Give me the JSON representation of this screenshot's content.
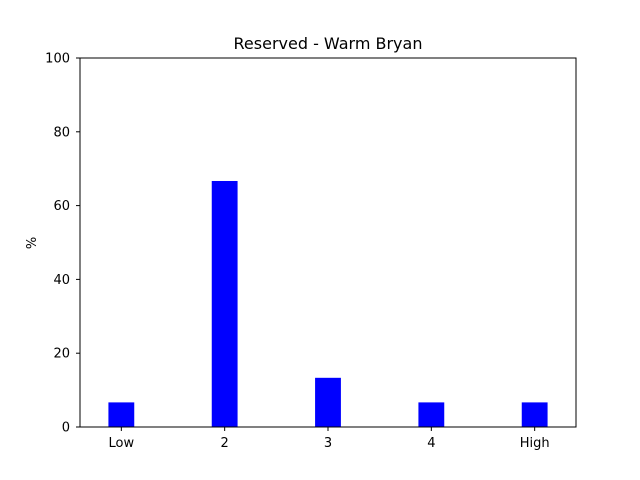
{
  "chart_data": {
    "type": "bar",
    "title": "Reserved - Warm Bryan",
    "xlabel": "",
    "ylabel": "%",
    "categories": [
      "Low",
      "2",
      "3",
      "4",
      "High"
    ],
    "values": [
      6.67,
      66.67,
      13.33,
      6.67,
      6.67
    ],
    "ylim": [
      0,
      100
    ],
    "yticks": [
      0,
      20,
      40,
      60,
      80,
      100
    ],
    "grid": false,
    "bar_color": "#0000ff"
  }
}
